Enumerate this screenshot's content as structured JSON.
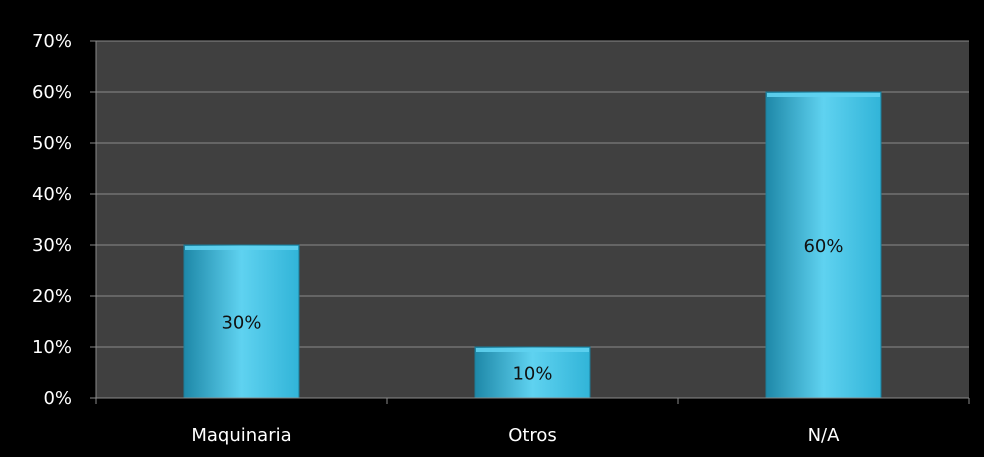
{
  "chart_data": {
    "type": "bar",
    "categories": [
      "Maquinaria",
      "Otros",
      "N/A"
    ],
    "values": [
      30,
      10,
      60
    ],
    "data_labels": [
      "30%",
      "10%",
      "60%"
    ],
    "title": "",
    "xlabel": "",
    "ylabel": "",
    "ylim": [
      0,
      70
    ],
    "y_ticks": [
      0,
      10,
      20,
      30,
      40,
      50,
      60,
      70
    ],
    "y_tick_labels": [
      "0%",
      "10%",
      "20%",
      "30%",
      "40%",
      "50%",
      "60%",
      "70%"
    ],
    "grid": true,
    "legend": "none",
    "colors": {
      "bar": "#31b4d8",
      "bar_light": "#5fd2f0",
      "bar_dark": "#1e88a8",
      "plot_background": "#404040",
      "page_background": "#000000",
      "gridline": "#8a8a8a",
      "text": "#ffffff",
      "data_label_text": "#111111"
    }
  }
}
